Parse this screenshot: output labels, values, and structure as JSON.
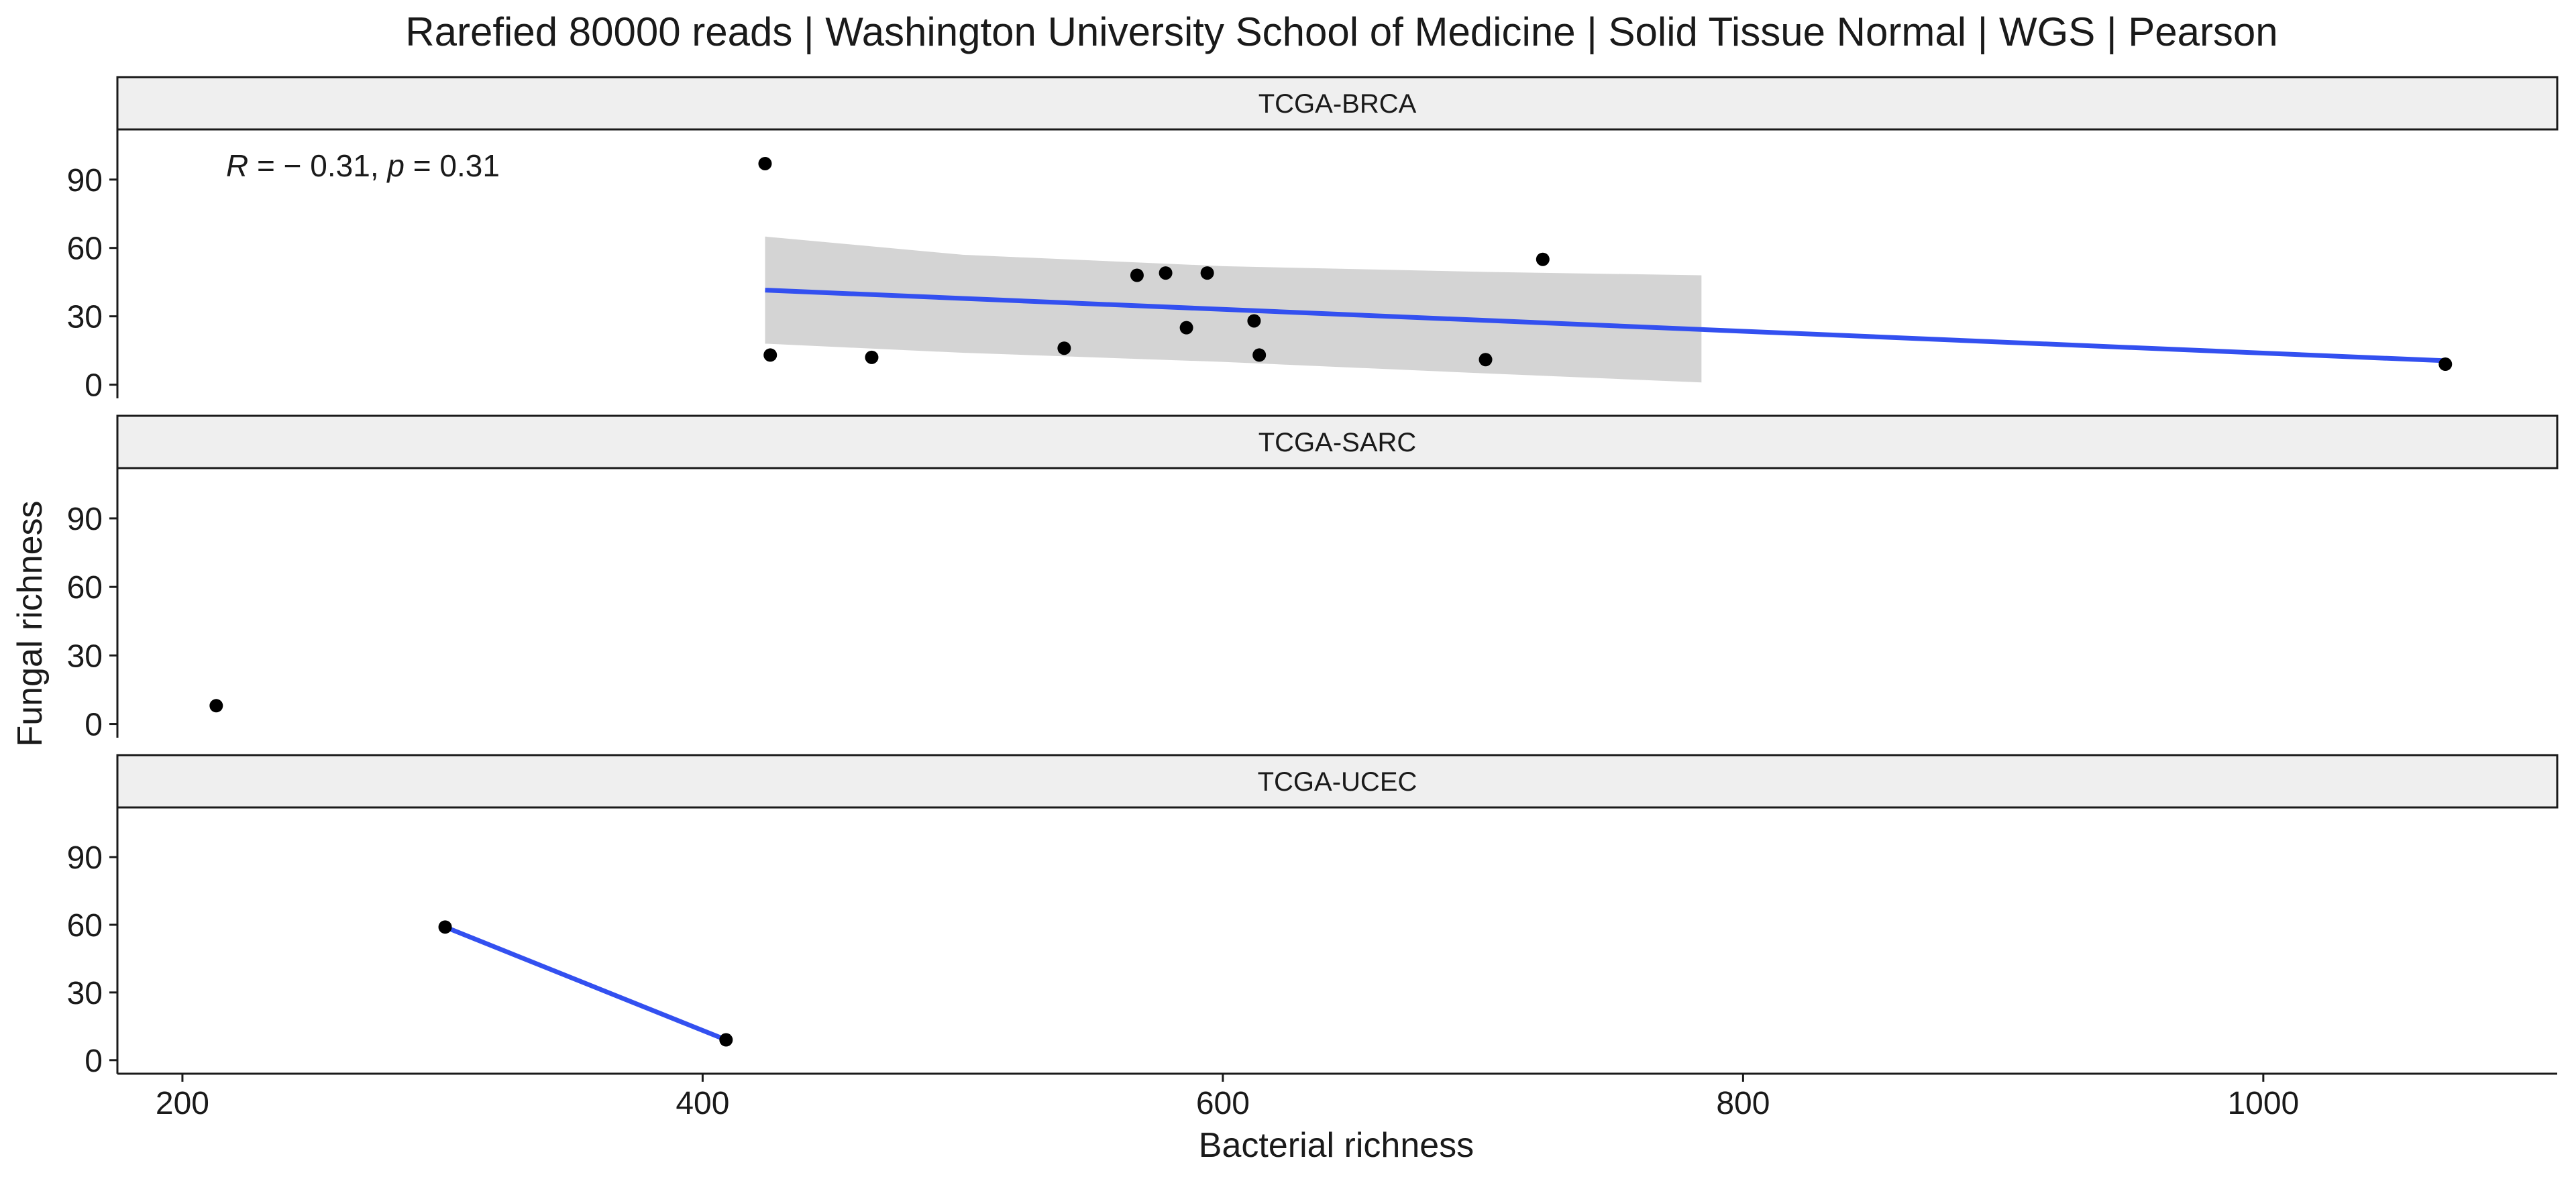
{
  "chart_data": {
    "type": "scatter",
    "title": "Rarefied 80000 reads | Washington University School of Medicine | Solid Tissue Normal | WGS | Pearson",
    "xlabel": "Bacterial richness",
    "ylabel": "Fungal richness",
    "xlim": [
      175,
      1113
    ],
    "ylim": [
      -6,
      112
    ],
    "x_ticks": [
      200,
      400,
      600,
      800,
      1000
    ],
    "y_ticks": [
      0,
      30,
      60,
      90
    ],
    "grid": false,
    "point_color": "#000000",
    "fit_color": "#3350F0",
    "ci_color": "#CCCCCC",
    "facets": [
      {
        "label": "TCGA-BRCA",
        "annotation": {
          "r_symbol": "R",
          "r_value": " = − 0.31, ",
          "p_symbol": "p",
          "p_value": " = 0.31"
        },
        "points": [
          {
            "x": 424,
            "y": 97
          },
          {
            "x": 426,
            "y": 13
          },
          {
            "x": 465,
            "y": 12
          },
          {
            "x": 539,
            "y": 16
          },
          {
            "x": 567,
            "y": 48
          },
          {
            "x": 578,
            "y": 49
          },
          {
            "x": 586,
            "y": 25
          },
          {
            "x": 594,
            "y": 49
          },
          {
            "x": 612,
            "y": 28
          },
          {
            "x": 614,
            "y": 13
          },
          {
            "x": 701,
            "y": 11
          },
          {
            "x": 723,
            "y": 55
          },
          {
            "x": 1070,
            "y": 9
          }
        ],
        "fit": {
          "x": [
            424,
            1070
          ],
          "y": [
            41.5,
            10.5
          ]
        },
        "ci": {
          "x": [
            424,
            500,
            600,
            700,
            784
          ],
          "upper": [
            65,
            57,
            52,
            49.5,
            48
          ],
          "lower": [
            18,
            14,
            10,
            5,
            1
          ]
        }
      },
      {
        "label": "TCGA-SARC",
        "points": [
          {
            "x": 213,
            "y": 8
          }
        ]
      },
      {
        "label": "TCGA-UCEC",
        "points": [
          {
            "x": 301,
            "y": 59
          },
          {
            "x": 409,
            "y": 9
          }
        ],
        "fit": {
          "x": [
            301,
            409
          ],
          "y": [
            59,
            9
          ]
        }
      }
    ]
  }
}
